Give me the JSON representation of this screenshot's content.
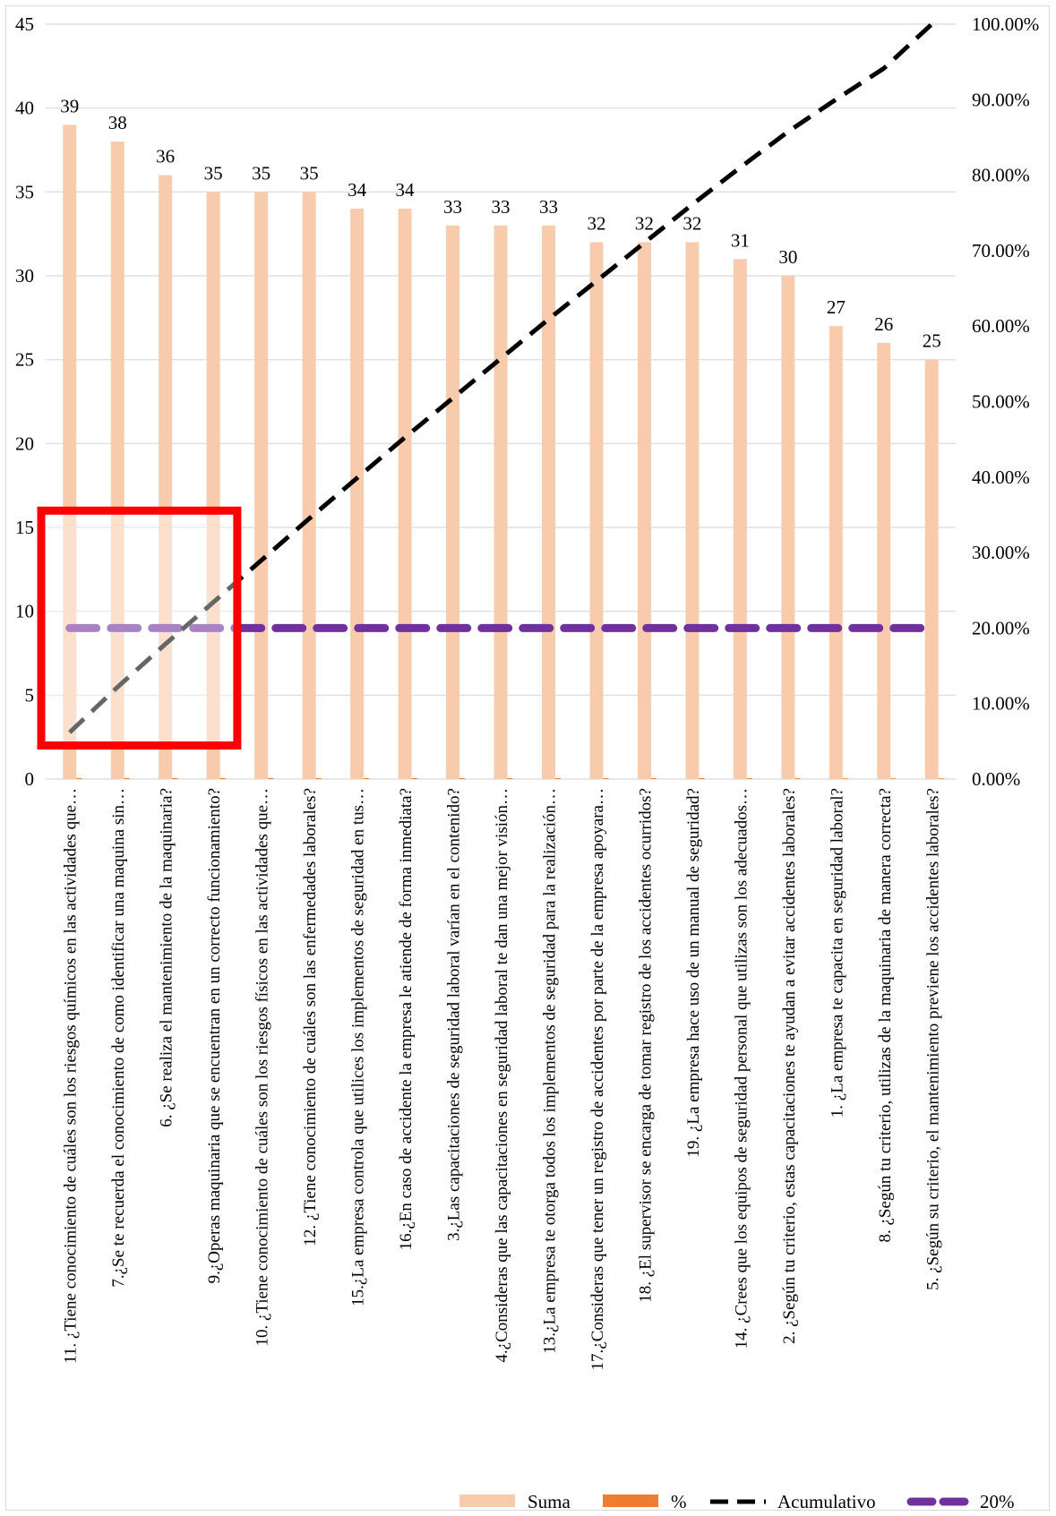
{
  "chart_data": {
    "type": "bar",
    "categories": [
      "11. ¿Tiene conocimiento de cuáles son los riesgos químicos en las actividades que…",
      "7.¿Se te recuerda el conocimiento de como identificar una maquina sin…",
      "6. ¿Se realiza el mantenimiento de la maquinaria?",
      "9.¿Operas maquinaria que se encuentran en un correcto funcionamiento?",
      "10. ¿Tiene conocimiento de cuáles son los riesgos físicos en las actividades que…",
      "12. ¿Tiene conocimiento de cuáles son las enfermedades laborales?",
      "15.¿La empresa controla que utilices los implementos de seguridad en tus…",
      "16.¿En caso de accidente la empresa le atiende de forma inmediata?",
      "3.¿Las capacitaciones de seguridad laboral varían en el contenido?",
      "4.¿Consideras que las capacitaciones en seguridad laboral te dan una mejor visión…",
      "13.¿La empresa te otorga todos los implementos de seguridad para la realización…",
      "17.¿Consideras que tener un registro de accidentes por parte de la empresa apoyara…",
      "18. ¿El supervisor se encarga de tomar registro de los accidentes ocurridos?",
      "19. ¿La empresa hace uso de un manual de seguridad?",
      "14. ¿Crees que los equipos de seguridad personal que utilizas son los adecuados…",
      "2. ¿Según tu criterio, estas capacitaciones te ayudan a evitar accidentes laborales?",
      "1. ¿La empresa te capacita en seguridad laboral?",
      "8. ¿Según tu criterio, utilizas de la maquinaria de manera correcta?",
      "5. ¿Según su criterio, el mantenimiento previene los accidentes laborales?"
    ],
    "series": [
      {
        "name": "Suma",
        "type": "bar",
        "color": "#f8cbad",
        "values": [
          39,
          38,
          36,
          35,
          35,
          35,
          34,
          34,
          33,
          33,
          33,
          32,
          32,
          32,
          31,
          30,
          27,
          26,
          25
        ]
      },
      {
        "name": "%",
        "type": "bar",
        "color": "#ed7d31",
        "values": [
          0.0617,
          0.0601,
          0.057,
          0.0554,
          0.0554,
          0.0554,
          0.0538,
          0.0538,
          0.0522,
          0.0522,
          0.0522,
          0.0506,
          0.0506,
          0.0506,
          0.0491,
          0.0475,
          0.0427,
          0.0411,
          0.0396
        ]
      },
      {
        "name": "Acumulativo",
        "type": "line",
        "axis": "secondary",
        "color": "#000000",
        "values": [
          0.0617,
          0.1218,
          0.1788,
          0.2342,
          0.2896,
          0.3449,
          0.3987,
          0.4525,
          0.5047,
          0.557,
          0.6092,
          0.6598,
          0.7104,
          0.7611,
          0.8101,
          0.8576,
          0.9003,
          0.9414,
          1.0
        ]
      },
      {
        "name": "20%",
        "type": "line",
        "axis": "secondary",
        "color": "#7030a0",
        "values": [
          0.2,
          0.2,
          0.2,
          0.2,
          0.2,
          0.2,
          0.2,
          0.2,
          0.2,
          0.2,
          0.2,
          0.2,
          0.2,
          0.2,
          0.2,
          0.2,
          0.2,
          0.2,
          0.2
        ]
      }
    ],
    "ylim": [
      0,
      45
    ],
    "y_ticks": [
      "0",
      "5",
      "10",
      "15",
      "20",
      "25",
      "30",
      "35",
      "40",
      "45"
    ],
    "y2lim": [
      0,
      1
    ],
    "y2_ticks": [
      "0.00%",
      "10.00%",
      "20.00%",
      "30.00%",
      "40.00%",
      "50.00%",
      "60.00%",
      "70.00%",
      "80.00%",
      "90.00%",
      "100.00%"
    ],
    "grid": true,
    "legend_position": "bottom",
    "highlight_box": {
      "color": "#ff0000",
      "categories_from": 0,
      "categories_to": 3,
      "y_range": [
        2,
        16
      ]
    }
  }
}
